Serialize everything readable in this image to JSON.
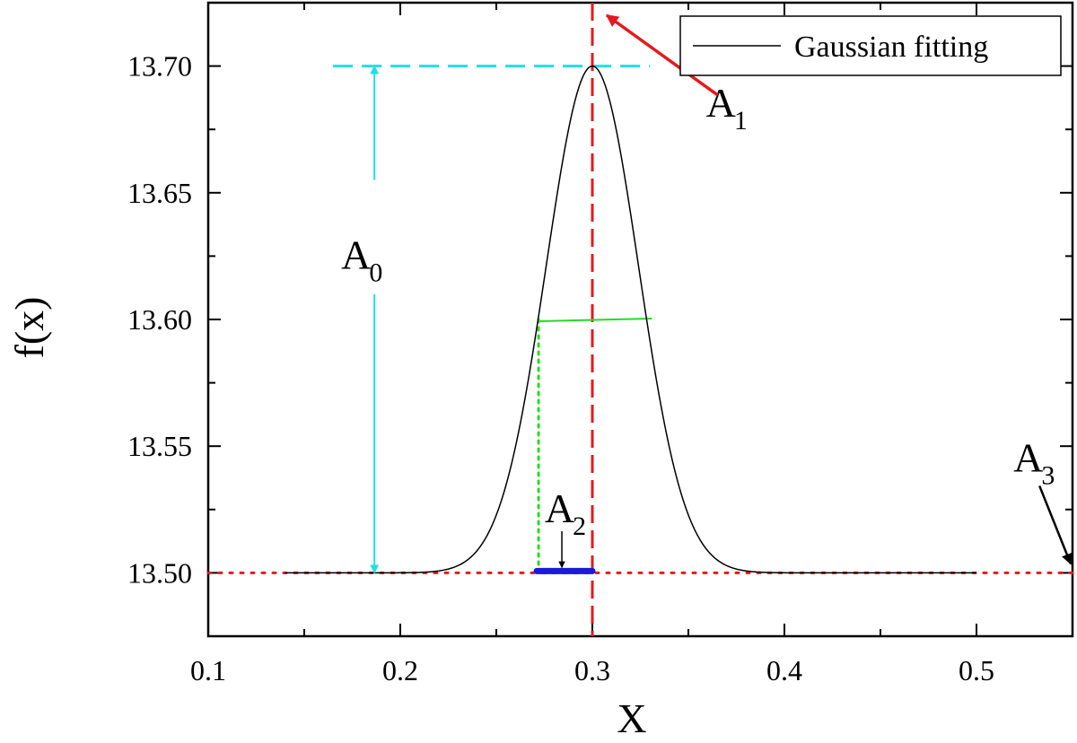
{
  "chart_data": {
    "type": "line",
    "xlabel": "X",
    "ylabel": "f(x)",
    "xlim": [
      0.1,
      0.55
    ],
    "ylim": [
      13.475,
      13.725
    ],
    "x_ticks": [
      "0.1",
      "0.2",
      "0.3",
      "0.4",
      "0.5"
    ],
    "y_ticks": [
      "13.50",
      "13.55",
      "13.60",
      "13.65",
      "13.70"
    ],
    "grid": false,
    "legend_position": "top-right",
    "series": [
      {
        "name": "Gaussian fitting",
        "color": "#000000",
        "function": "gaussian",
        "baseline": 13.5,
        "amplitude": 0.2,
        "center": 0.3,
        "sigma": 0.024,
        "x_range": [
          0.14,
          0.5
        ]
      }
    ],
    "reference_lines": {
      "baseline_level": 13.5,
      "baseline_color": "#e41a1c",
      "peak_level": 13.7,
      "peak_line_x_range": [
        0.165,
        0.33
      ],
      "peak_line_color": "#22dde8",
      "center_x": 0.3,
      "center_line_color": "#e41a1c",
      "half_width_level": 13.6,
      "half_width_x_range": [
        0.272,
        0.331
      ],
      "half_width_color": "#22dd22",
      "half_width_drop_x": 0.272,
      "width_bar_x_range": [
        0.272,
        0.3
      ],
      "width_bar_color": "#1a1adb"
    },
    "annotations": [
      {
        "label": "A",
        "sub": "0",
        "x": 0.18,
        "y": 13.62,
        "arrow_color": "#22dde8"
      },
      {
        "label": "A",
        "sub": "1",
        "x": 0.37,
        "y": 13.68,
        "arrow_color": "#e41a1c"
      },
      {
        "label": "A",
        "sub": "2",
        "x": 0.286,
        "y": 13.52,
        "arrow_color": "#000000"
      },
      {
        "label": "A",
        "sub": "3",
        "x": 0.53,
        "y": 13.54,
        "arrow_color": "#000000"
      }
    ]
  }
}
